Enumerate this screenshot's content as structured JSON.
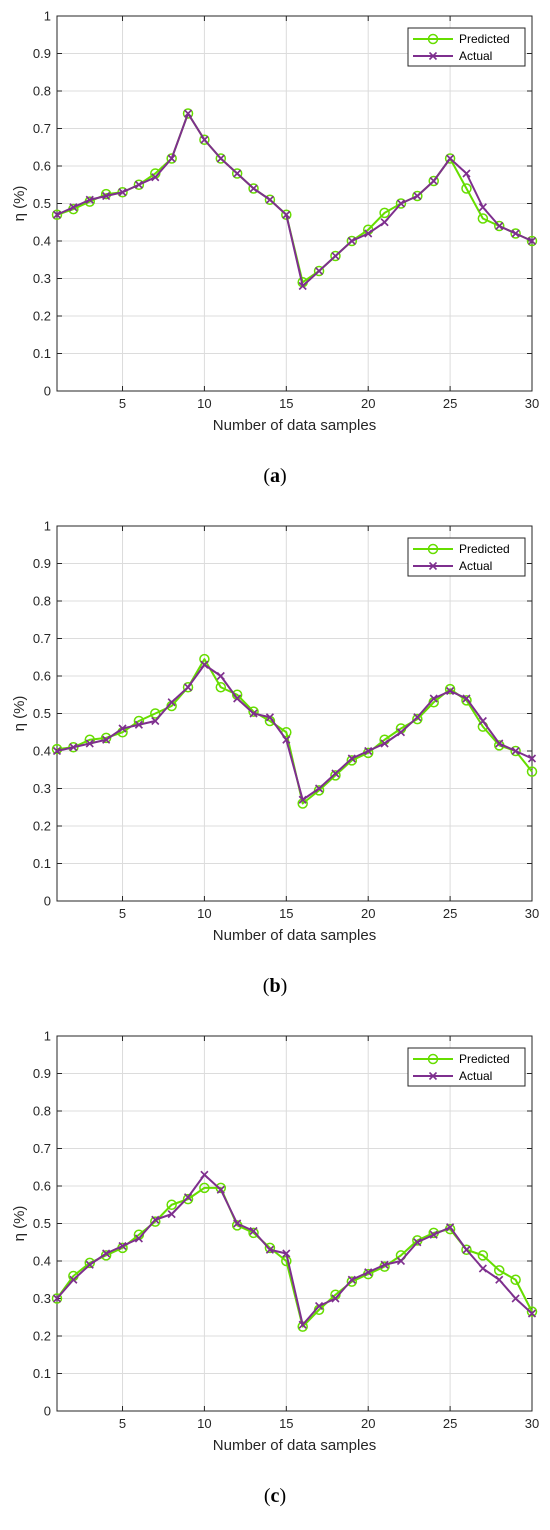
{
  "chart_data": [
    {
      "type": "line",
      "caption_letter": "a",
      "xlabel": "Number of data samples",
      "ylabel": "η (%)",
      "xlim": [
        1,
        30
      ],
      "ylim": [
        0,
        1
      ],
      "xticks": [
        5,
        10,
        15,
        20,
        25,
        30
      ],
      "yticks": [
        0,
        0.1,
        0.2,
        0.3,
        0.4,
        0.5,
        0.6,
        0.7,
        0.8,
        0.9,
        1
      ],
      "grid": true,
      "legend_position": "top-right",
      "x": [
        1,
        2,
        3,
        4,
        5,
        6,
        7,
        8,
        9,
        10,
        11,
        12,
        13,
        14,
        15,
        16,
        17,
        18,
        19,
        20,
        21,
        22,
        23,
        24,
        25,
        26,
        27,
        28,
        29,
        30
      ],
      "series": [
        {
          "name": "Predicted",
          "color": "#66dd00",
          "marker": "circle",
          "values": [
            0.47,
            0.485,
            0.505,
            0.525,
            0.53,
            0.55,
            0.58,
            0.62,
            0.74,
            0.67,
            0.62,
            0.58,
            0.54,
            0.51,
            0.47,
            0.29,
            0.32,
            0.36,
            0.4,
            0.43,
            0.475,
            0.5,
            0.52,
            0.56,
            0.62,
            0.54,
            0.46,
            0.44,
            0.42,
            0.4
          ]
        },
        {
          "name": "Actual",
          "color": "#7e2f8e",
          "marker": "x",
          "values": [
            0.47,
            0.49,
            0.51,
            0.52,
            0.53,
            0.55,
            0.57,
            0.62,
            0.74,
            0.67,
            0.62,
            0.58,
            0.54,
            0.51,
            0.47,
            0.28,
            0.32,
            0.36,
            0.4,
            0.42,
            0.45,
            0.5,
            0.52,
            0.56,
            0.62,
            0.58,
            0.49,
            0.44,
            0.42,
            0.4
          ]
        }
      ]
    },
    {
      "type": "line",
      "caption_letter": "b",
      "xlabel": "Number of data samples",
      "ylabel": "η (%)",
      "xlim": [
        1,
        30
      ],
      "ylim": [
        0,
        1
      ],
      "xticks": [
        5,
        10,
        15,
        20,
        25,
        30
      ],
      "yticks": [
        0,
        0.1,
        0.2,
        0.3,
        0.4,
        0.5,
        0.6,
        0.7,
        0.8,
        0.9,
        1
      ],
      "grid": true,
      "legend_position": "top-right",
      "x": [
        1,
        2,
        3,
        4,
        5,
        6,
        7,
        8,
        9,
        10,
        11,
        12,
        13,
        14,
        15,
        16,
        17,
        18,
        19,
        20,
        21,
        22,
        23,
        24,
        25,
        26,
        27,
        28,
        29,
        30
      ],
      "series": [
        {
          "name": "Predicted",
          "color": "#66dd00",
          "marker": "circle",
          "values": [
            0.405,
            0.41,
            0.43,
            0.435,
            0.45,
            0.48,
            0.5,
            0.52,
            0.57,
            0.645,
            0.57,
            0.55,
            0.505,
            0.48,
            0.45,
            0.26,
            0.295,
            0.335,
            0.375,
            0.395,
            0.43,
            0.46,
            0.485,
            0.53,
            0.565,
            0.535,
            0.465,
            0.415,
            0.4,
            0.345
          ]
        },
        {
          "name": "Actual",
          "color": "#7e2f8e",
          "marker": "x",
          "values": [
            0.4,
            0.41,
            0.42,
            0.43,
            0.46,
            0.47,
            0.48,
            0.53,
            0.57,
            0.63,
            0.6,
            0.54,
            0.5,
            0.49,
            0.43,
            0.27,
            0.3,
            0.34,
            0.38,
            0.4,
            0.42,
            0.45,
            0.49,
            0.54,
            0.56,
            0.54,
            0.48,
            0.42,
            0.4,
            0.38
          ]
        }
      ]
    },
    {
      "type": "line",
      "caption_letter": "c",
      "xlabel": "Number of data samples",
      "ylabel": "η (%)",
      "xlim": [
        1,
        30
      ],
      "ylim": [
        0,
        1
      ],
      "xticks": [
        5,
        10,
        15,
        20,
        25,
        30
      ],
      "yticks": [
        0,
        0.1,
        0.2,
        0.3,
        0.4,
        0.5,
        0.6,
        0.7,
        0.8,
        0.9,
        1
      ],
      "grid": true,
      "legend_position": "top-right",
      "x": [
        1,
        2,
        3,
        4,
        5,
        6,
        7,
        8,
        9,
        10,
        11,
        12,
        13,
        14,
        15,
        16,
        17,
        18,
        19,
        20,
        21,
        22,
        23,
        24,
        25,
        26,
        27,
        28,
        29,
        30
      ],
      "series": [
        {
          "name": "Predicted",
          "color": "#66dd00",
          "marker": "circle",
          "values": [
            0.3,
            0.36,
            0.395,
            0.415,
            0.435,
            0.47,
            0.505,
            0.55,
            0.565,
            0.595,
            0.595,
            0.495,
            0.475,
            0.435,
            0.4,
            0.225,
            0.27,
            0.31,
            0.345,
            0.365,
            0.385,
            0.415,
            0.455,
            0.475,
            0.485,
            0.43,
            0.415,
            0.375,
            0.35,
            0.265
          ]
        },
        {
          "name": "Actual",
          "color": "#7e2f8e",
          "marker": "x",
          "values": [
            0.3,
            0.35,
            0.39,
            0.42,
            0.44,
            0.46,
            0.51,
            0.525,
            0.57,
            0.63,
            0.59,
            0.5,
            0.48,
            0.43,
            0.42,
            0.23,
            0.28,
            0.3,
            0.35,
            0.37,
            0.39,
            0.4,
            0.45,
            0.47,
            0.49,
            0.43,
            0.38,
            0.35,
            0.3,
            0.26
          ]
        }
      ]
    }
  ]
}
